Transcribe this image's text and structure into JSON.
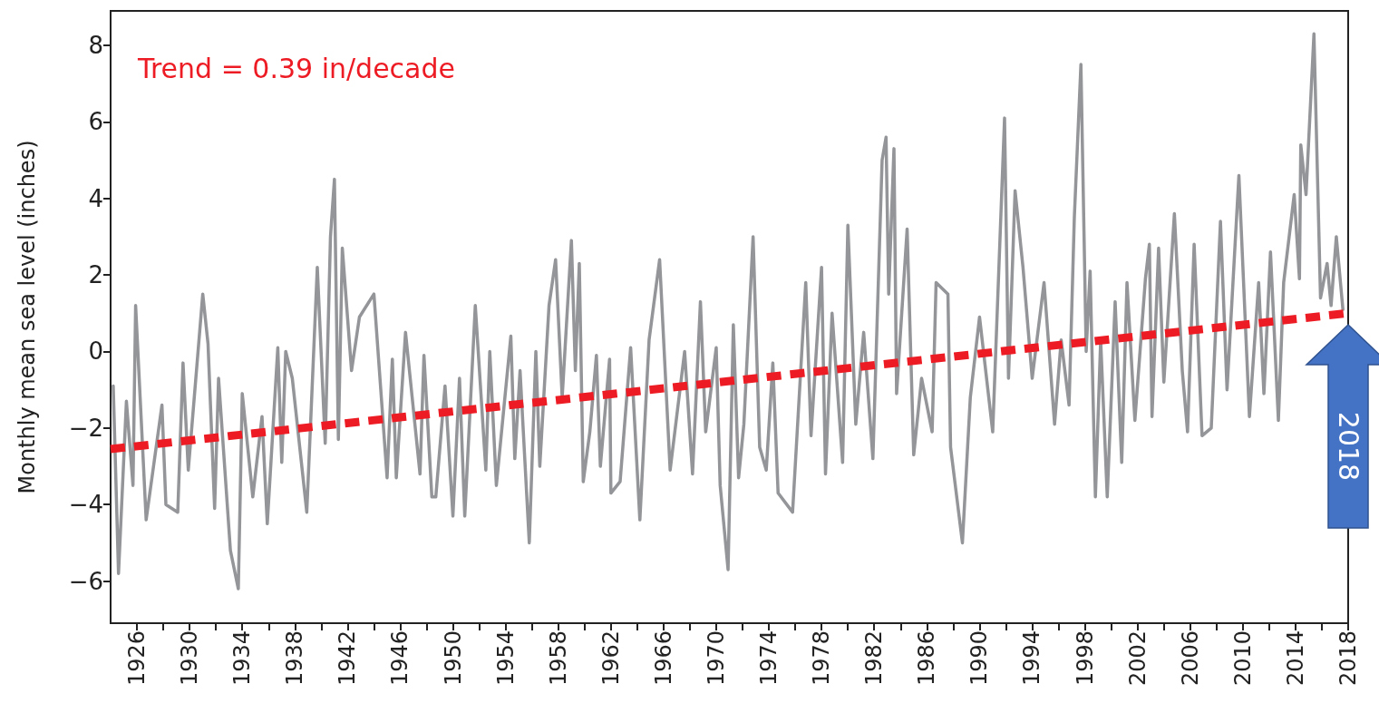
{
  "chart_data": {
    "type": "line",
    "ylabel": "Monthly mean sea level (inches)",
    "xlim": [
      1924,
      2018
    ],
    "ylim": [
      -7.1,
      8.9
    ],
    "xticks": [
      1926,
      {
        "value": 1928,
        "label": null
      },
      1930,
      {
        "value": 1932,
        "label": null
      },
      1934,
      {
        "value": 1936,
        "label": null
      },
      1938,
      {
        "value": 1940,
        "label": null
      },
      1942,
      {
        "value": 1944,
        "label": null
      },
      1946,
      {
        "value": 1948,
        "label": null
      },
      1950,
      {
        "value": 1952,
        "label": null
      },
      1954,
      {
        "value": 1956,
        "label": null
      },
      1958,
      {
        "value": 1960,
        "label": null
      },
      1962,
      {
        "value": 1964,
        "label": null
      },
      1966,
      {
        "value": 1968,
        "label": null
      },
      1970,
      {
        "value": 1972,
        "label": null
      },
      1974,
      {
        "value": 1976,
        "label": null
      },
      1978,
      {
        "value": 1980,
        "label": null
      },
      1982,
      {
        "value": 1984,
        "label": null
      },
      1986,
      {
        "value": 1988,
        "label": null
      },
      1990,
      {
        "value": 1992,
        "label": null
      },
      1994,
      {
        "value": 1996,
        "label": null
      },
      1998,
      {
        "value": 2000,
        "label": null
      },
      2002,
      {
        "value": 2004,
        "label": null
      },
      2006,
      {
        "value": 2008,
        "label": null
      },
      2010,
      {
        "value": 2012,
        "label": null
      },
      2014,
      {
        "value": 2016,
        "label": null
      },
      2018
    ],
    "yticks": [
      -6,
      -4,
      -2,
      0,
      2,
      4,
      6,
      8
    ],
    "grid": false,
    "legend": false,
    "marker": "none",
    "series": [
      {
        "color": "#939598",
        "line_style": "solid",
        "x": [
          1924.2,
          1924.6,
          1925.2,
          1925.7,
          1925.9,
          1926.7,
          1927.9,
          1928.2,
          1929.1,
          1929.5,
          1929.9,
          1931.0,
          1931.4,
          1931.9,
          1932.2,
          1933.1,
          1933.7,
          1934.0,
          1934.8,
          1935.5,
          1935.9,
          1936.7,
          1937.0,
          1937.3,
          1937.8,
          1938.9,
          1939.7,
          1940.3,
          1940.7,
          1941.0,
          1941.3,
          1941.6,
          1942.3,
          1942.9,
          1944.0,
          1945.0,
          1945.4,
          1945.7,
          1946.4,
          1947.5,
          1947.8,
          1948.4,
          1948.7,
          1949.4,
          1950.0,
          1950.5,
          1950.9,
          1951.7,
          1952.5,
          1952.8,
          1953.3,
          1954.4,
          1954.7,
          1955.1,
          1955.8,
          1956.3,
          1956.6,
          1957.3,
          1957.8,
          1958.3,
          1959.0,
          1959.3,
          1959.6,
          1959.9,
          1960.4,
          1960.9,
          1961.2,
          1961.9,
          1962.0,
          1962.7,
          1963.5,
          1964.2,
          1964.9,
          1965.7,
          1966.5,
          1967.6,
          1968.2,
          1968.8,
          1969.2,
          1970.0,
          1970.3,
          1970.9,
          1971.3,
          1971.7,
          1972.1,
          1972.8,
          1973.3,
          1973.8,
          1974.3,
          1974.7,
          1975.8,
          1976.8,
          1977.2,
          1978.0,
          1978.3,
          1978.8,
          1979.6,
          1980.0,
          1980.6,
          1981.2,
          1981.9,
          1982.6,
          1982.9,
          1983.1,
          1983.5,
          1983.7,
          1984.5,
          1985.0,
          1985.6,
          1986.4,
          1986.7,
          1987.6,
          1987.8,
          1988.7,
          1989.3,
          1990.0,
          1991.0,
          1991.9,
          1992.2,
          1992.7,
          1993.3,
          1994.0,
          1994.9,
          1995.7,
          1996.2,
          1996.8,
          1997.2,
          1997.7,
          1998.1,
          1998.4,
          1998.8,
          1999.2,
          1999.7,
          2000.3,
          2000.8,
          2001.2,
          2001.8,
          2002.6,
          2002.9,
          2003.1,
          2003.6,
          2004.0,
          2004.8,
          2005.4,
          2005.8,
          2006.3,
          2006.9,
          2007.6,
          2008.3,
          2008.8,
          2009.7,
          2010.5,
          2011.2,
          2011.6,
          2012.1,
          2012.7,
          2013.1,
          2013.9,
          2014.3,
          2014.4,
          2014.8,
          2015.4,
          2015.9,
          2016.4,
          2016.7,
          2017.1,
          2017.6
        ],
        "values": [
          -0.9,
          -5.8,
          -1.3,
          -3.5,
          1.2,
          -4.4,
          -1.4,
          -4.0,
          -4.2,
          -0.3,
          -3.1,
          1.5,
          0.2,
          -4.1,
          -0.7,
          -5.2,
          -6.2,
          -1.1,
          -3.8,
          -1.7,
          -4.5,
          0.1,
          -2.9,
          0.0,
          -0.7,
          -4.2,
          2.2,
          -2.4,
          3.0,
          4.5,
          -2.3,
          2.7,
          -0.5,
          0.9,
          1.5,
          -3.3,
          -0.2,
          -3.3,
          0.5,
          -3.2,
          -0.1,
          -3.8,
          -3.8,
          -0.9,
          -4.3,
          -0.7,
          -4.3,
          1.2,
          -3.1,
          0.0,
          -3.5,
          0.4,
          -2.8,
          -0.5,
          -5.0,
          0.0,
          -3.0,
          1.2,
          2.4,
          -1.2,
          2.9,
          -0.5,
          2.3,
          -3.4,
          -2.1,
          -0.1,
          -3.0,
          -0.2,
          -3.7,
          -3.4,
          0.1,
          -4.4,
          0.3,
          2.4,
          -3.1,
          0.0,
          -3.2,
          1.3,
          -2.1,
          0.1,
          -3.5,
          -5.7,
          0.7,
          -3.3,
          -1.9,
          3.0,
          -2.5,
          -3.1,
          -0.3,
          -3.7,
          -4.2,
          1.8,
          -2.2,
          2.2,
          -3.2,
          1.0,
          -2.9,
          3.3,
          -1.9,
          0.5,
          -2.8,
          5.0,
          5.6,
          1.5,
          5.3,
          -1.1,
          3.2,
          -2.7,
          -0.7,
          -2.1,
          1.8,
          1.5,
          -2.5,
          -5.0,
          -1.2,
          0.9,
          -2.1,
          6.1,
          -0.7,
          4.2,
          2.2,
          -0.7,
          1.8,
          -1.9,
          0.3,
          -1.4,
          3.5,
          7.5,
          0.0,
          2.1,
          -3.8,
          0.3,
          -3.8,
          1.3,
          -2.9,
          1.8,
          -1.8,
          1.9,
          2.8,
          -1.7,
          2.7,
          -0.8,
          3.6,
          -0.5,
          -2.1,
          2.8,
          -2.2,
          -2.0,
          3.4,
          -1.0,
          4.6,
          -1.7,
          1.8,
          -1.1,
          2.6,
          -1.8,
          1.8,
          4.1,
          1.9,
          5.4,
          4.1,
          8.3,
          1.4,
          2.3,
          1.2,
          3.0,
          1.1
        ]
      },
      {
        "name": "Trend = 0.39 in/decade",
        "color": "#ed1c24",
        "line_style": "dashed",
        "x": [
          1924,
          2018
        ],
        "values": [
          -2.55,
          1.0
        ]
      }
    ],
    "annotations": [
      "2018"
    ]
  }
}
